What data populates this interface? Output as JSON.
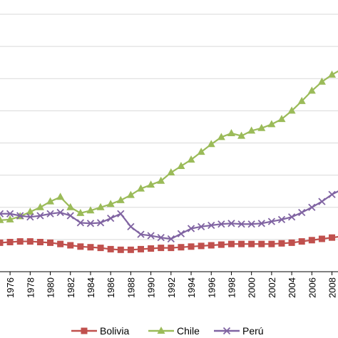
{
  "chart_data": {
    "type": "line",
    "title": "",
    "xlabel": "",
    "ylabel": "",
    "grid": "horizontal",
    "legend": "bottom",
    "x": [
      1975,
      1976,
      1977,
      1978,
      1979,
      1980,
      1981,
      1982,
      1983,
      1984,
      1985,
      1986,
      1987,
      1988,
      1989,
      1990,
      1991,
      1992,
      1993,
      1994,
      1995,
      1996,
      1997,
      1998,
      1999,
      2000,
      2001,
      2002,
      2003,
      2004,
      2005,
      2006,
      2007,
      2008,
      2009
    ],
    "xticks": [
      "1976",
      "1978",
      "1980",
      "1982",
      "1984",
      "1986",
      "1988",
      "1990",
      "1992",
      "1994",
      "1996",
      "1998",
      "2000",
      "2002",
      "2004",
      "2006",
      "2008"
    ],
    "xlim": [
      1975.0,
      2008.6
    ],
    "ylim": [
      0,
      8
    ],
    "series": [
      {
        "name": "Bolivia",
        "color": "#c0504d",
        "marker": "square",
        "values": [
          0.9,
          0.92,
          0.94,
          0.94,
          0.92,
          0.9,
          0.86,
          0.82,
          0.78,
          0.76,
          0.74,
          0.7,
          0.68,
          0.68,
          0.7,
          0.72,
          0.74,
          0.74,
          0.76,
          0.78,
          0.8,
          0.82,
          0.84,
          0.86,
          0.86,
          0.86,
          0.86,
          0.86,
          0.88,
          0.9,
          0.94,
          0.98,
          1.02,
          1.06,
          1.1
        ]
      },
      {
        "name": "Chile",
        "color": "#9bbb59",
        "marker": "triangle",
        "values": [
          1.6,
          1.62,
          1.72,
          1.86,
          2.0,
          2.18,
          2.32,
          2.0,
          1.82,
          1.9,
          2.0,
          2.1,
          2.22,
          2.38,
          2.58,
          2.7,
          2.82,
          3.08,
          3.28,
          3.48,
          3.72,
          3.96,
          4.18,
          4.3,
          4.22,
          4.38,
          4.46,
          4.58,
          4.74,
          5.0,
          5.3,
          5.62,
          5.9,
          6.12,
          6.3
        ]
      },
      {
        "name": "Perú",
        "color": "#8064a2",
        "marker": "x",
        "values": [
          1.8,
          1.8,
          1.74,
          1.7,
          1.74,
          1.8,
          1.84,
          1.74,
          1.52,
          1.5,
          1.52,
          1.66,
          1.8,
          1.4,
          1.16,
          1.12,
          1.06,
          1.02,
          1.18,
          1.34,
          1.4,
          1.44,
          1.48,
          1.5,
          1.48,
          1.48,
          1.5,
          1.56,
          1.62,
          1.7,
          1.84,
          2.0,
          2.18,
          2.4,
          2.56
        ]
      }
    ]
  }
}
